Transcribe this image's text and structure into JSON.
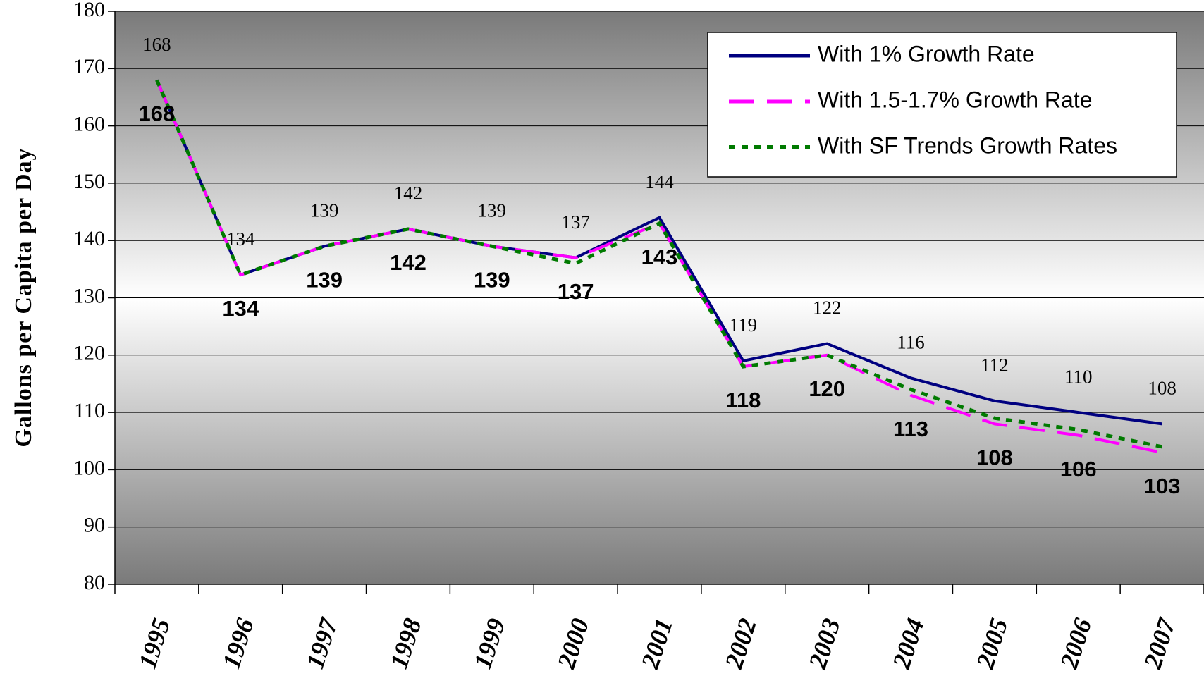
{
  "chart_data": {
    "type": "line",
    "y_label": "Gallons per Capita per Day",
    "categories": [
      "1995",
      "1996",
      "1997",
      "1998",
      "1999",
      "2000",
      "2001",
      "2002",
      "2003",
      "2004",
      "2005",
      "2006",
      "2007"
    ],
    "series": [
      {
        "name": "With 1% Growth Rate",
        "color": "#000080",
        "dash": "solid",
        "values": [
          168,
          134,
          139,
          142,
          139,
          137,
          144,
          119,
          122,
          116,
          112,
          110,
          108
        ]
      },
      {
        "name": "With 1.5-1.7% Growth Rate",
        "color": "#ff00ff",
        "dash": "dashed",
        "values": [
          168,
          134,
          139,
          142,
          139,
          137,
          143,
          118,
          120,
          113,
          108,
          106,
          103
        ]
      },
      {
        "name": "With SF Trends Growth Rates",
        "color": "#007a00",
        "dash": "dotted",
        "values": [
          168,
          134,
          139,
          142,
          139,
          136,
          143,
          118,
          120,
          114,
          109,
          107,
          104
        ]
      }
    ],
    "ylim": [
      80,
      180
    ],
    "yticks": [
      80,
      90,
      100,
      110,
      120,
      130,
      140,
      150,
      160,
      170,
      180
    ],
    "grid": true,
    "legend": "upper right"
  }
}
